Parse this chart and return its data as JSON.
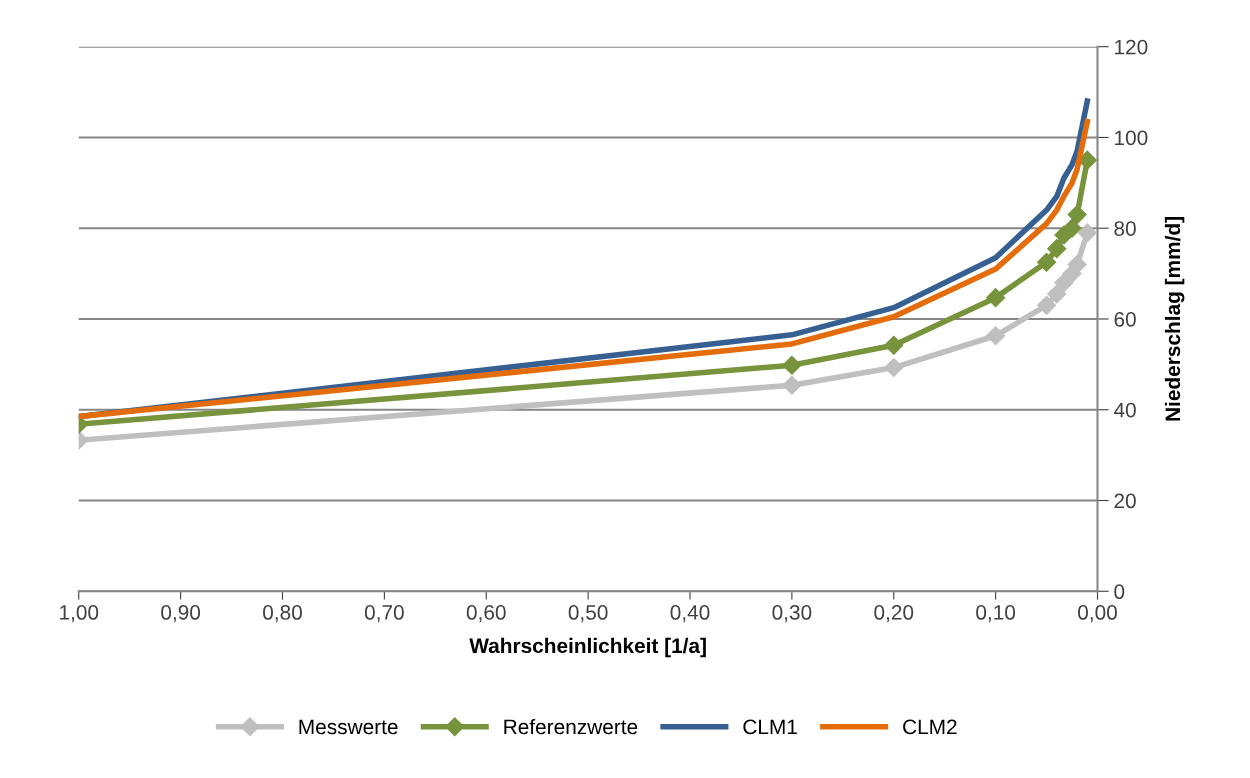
{
  "chart_data": {
    "type": "line",
    "xlabel": "Wahrscheinlichkeit [1/a]",
    "ylabel": "Niederschlag [mm/d]",
    "x": [
      1.0,
      0.3,
      0.2,
      0.1,
      0.05,
      0.04,
      0.033,
      0.025,
      0.02,
      0.01
    ],
    "series": [
      {
        "name": "Messwerte",
        "color": "#bfbfbf",
        "marker": "diamond",
        "values": [
          33.3,
          45.4,
          49.3,
          56.3,
          63,
          65.5,
          68,
          70,
          72,
          79
        ]
      },
      {
        "name": "Referenzwerte",
        "color": "#77933c",
        "marker": "diamond",
        "values": [
          36.8,
          49.8,
          54.2,
          64.7,
          72.5,
          75.5,
          78.5,
          80,
          83,
          95
        ]
      },
      {
        "name": "CLM1",
        "color": "#376092",
        "marker": "none",
        "values": [
          38.5,
          56.5,
          62.5,
          73.5,
          84,
          87,
          91,
          94,
          97,
          108
        ]
      },
      {
        "name": "CLM2",
        "color": "#e46c0a",
        "marker": "none",
        "values": [
          38.5,
          54.5,
          60.5,
          71,
          81,
          84,
          87,
          90,
          93,
          103.5
        ]
      }
    ],
    "xlim": [
      1.0,
      0.0
    ],
    "ylim": [
      0,
      120
    ],
    "xticks": [
      {
        "value": 1.0,
        "label": "1,00"
      },
      {
        "value": 0.9,
        "label": "0,90"
      },
      {
        "value": 0.8,
        "label": "0,80"
      },
      {
        "value": 0.7,
        "label": "0,70"
      },
      {
        "value": 0.6,
        "label": "0,60"
      },
      {
        "value": 0.5,
        "label": "0,50"
      },
      {
        "value": 0.4,
        "label": "0,40"
      },
      {
        "value": 0.3,
        "label": "0,30"
      },
      {
        "value": 0.2,
        "label": "0,20"
      },
      {
        "value": 0.1,
        "label": "0,10"
      },
      {
        "value": 0.0,
        "label": "0,00"
      }
    ],
    "yticks": [
      0,
      20,
      40,
      60,
      80,
      100,
      120
    ],
    "grid": "y",
    "legend": "bottom",
    "line_style": "solid"
  }
}
